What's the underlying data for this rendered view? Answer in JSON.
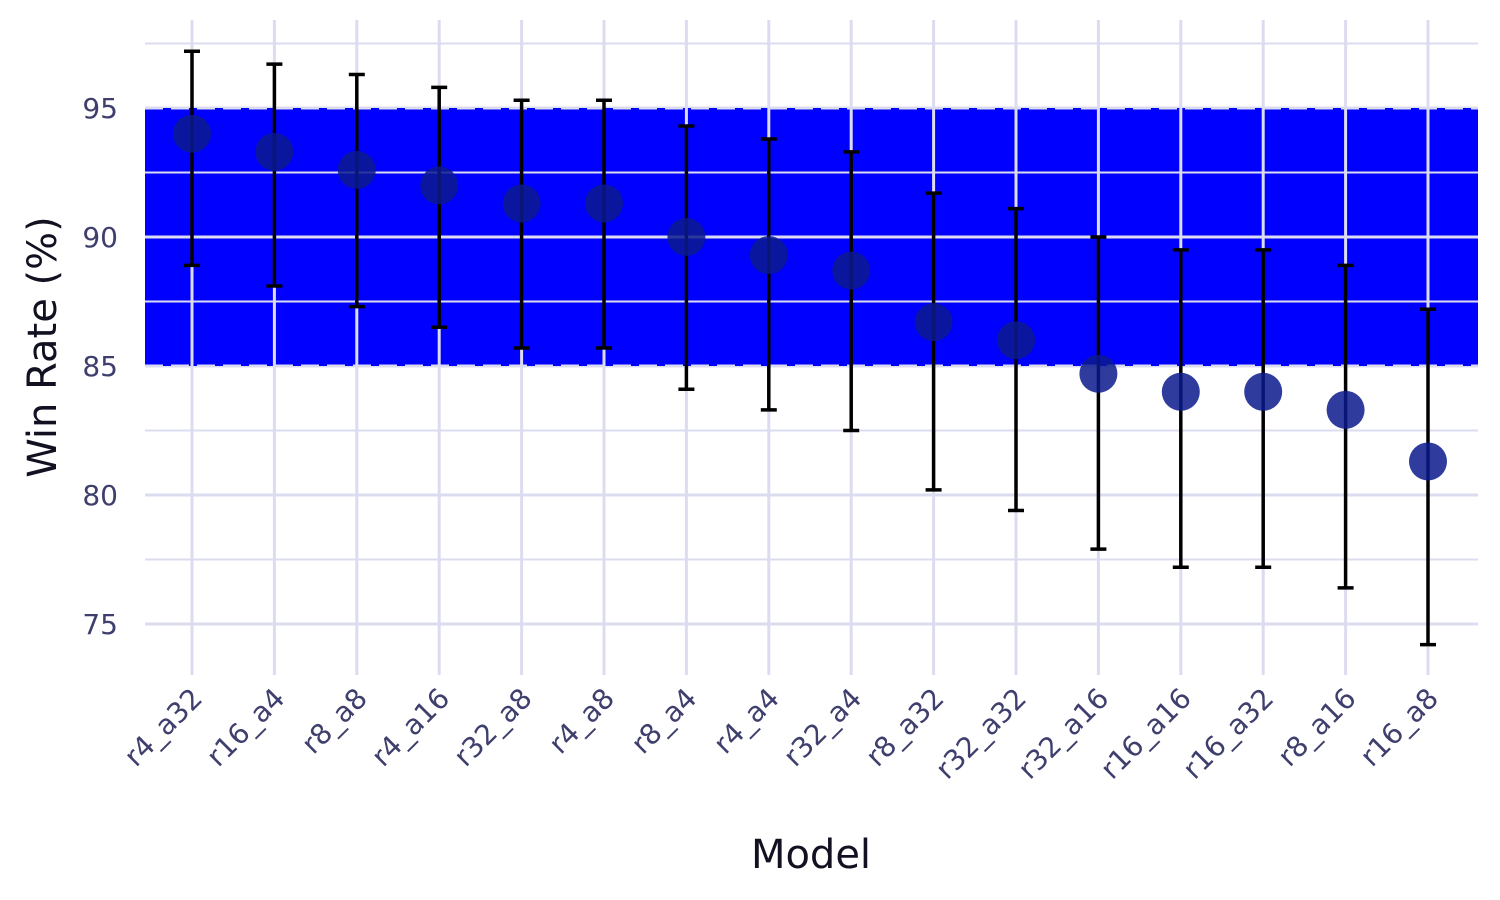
{
  "chart_data": {
    "type": "scatter",
    "xlabel": "Model",
    "ylabel": "Win Rate (%)",
    "ylim": [
      73,
      98.5
    ],
    "yticks": [
      75,
      80,
      85,
      90,
      95
    ],
    "grid": true,
    "band": {
      "from": 85,
      "to": 95,
      "color": "#0000ff"
    },
    "colors": {
      "point": "#0a1a8c",
      "errorbar": "#000000",
      "grid": "#dcdcf0",
      "band": "#0000ff"
    },
    "categories": [
      "r4_a32",
      "r16_a4",
      "r8_a8",
      "r4_a16",
      "r32_a8",
      "r4_a8",
      "r8_a4",
      "r4_a4",
      "r32_a4",
      "r8_a32",
      "r32_a32",
      "r32_a16",
      "r16_a16",
      "r16_a32",
      "r8_a16",
      "r16_a8"
    ],
    "series": [
      {
        "values": [
          94.0,
          93.3,
          92.6,
          92.0,
          91.3,
          91.3,
          90.0,
          89.3,
          88.7,
          86.7,
          86.0,
          84.7,
          84.0,
          84.0,
          83.3,
          81.3
        ],
        "lower": [
          88.9,
          88.1,
          87.3,
          86.5,
          85.7,
          85.7,
          84.1,
          83.3,
          82.5,
          80.2,
          79.4,
          77.9,
          77.2,
          77.2,
          76.4,
          74.2
        ],
        "upper": [
          97.2,
          96.7,
          96.3,
          95.8,
          95.3,
          95.3,
          94.3,
          93.8,
          93.3,
          91.7,
          91.1,
          90.0,
          89.5,
          89.5,
          88.9,
          87.2
        ]
      }
    ]
  }
}
